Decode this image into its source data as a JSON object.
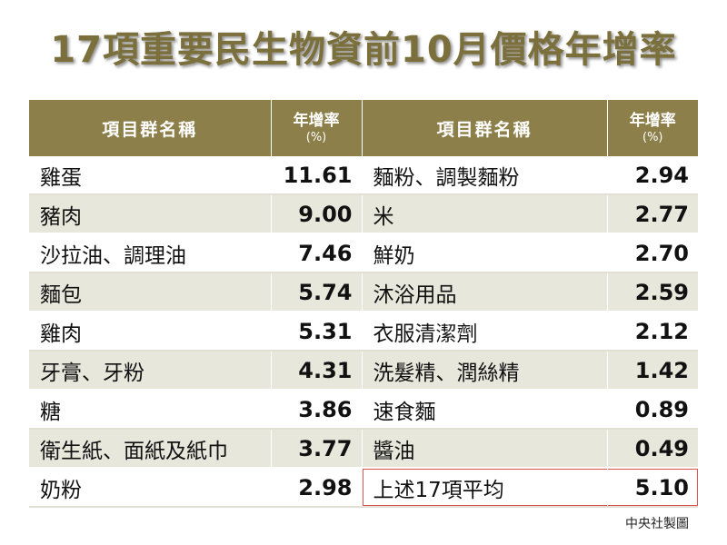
{
  "title": "17項重要民生物資前10月價格年增率",
  "table": {
    "header": {
      "name_col": "項目群名稱",
      "rate_col": "年增率",
      "rate_unit": "(%)"
    },
    "left": [
      {
        "name": "雞蛋",
        "rate": "11.61"
      },
      {
        "name": "豬肉",
        "rate": "9.00"
      },
      {
        "name": "沙拉油、調理油",
        "rate": "7.46"
      },
      {
        "name": "麵包",
        "rate": "5.74"
      },
      {
        "name": "雞肉",
        "rate": "5.31"
      },
      {
        "name": "牙膏、牙粉",
        "rate": "4.31"
      },
      {
        "name": "糖",
        "rate": "3.86"
      },
      {
        "name": "衛生紙、面紙及紙巾",
        "rate": "3.77"
      },
      {
        "name": "奶粉",
        "rate": "2.98"
      }
    ],
    "right": [
      {
        "name": "麵粉、調製麵粉",
        "rate": "2.94"
      },
      {
        "name": "米",
        "rate": "2.77"
      },
      {
        "name": "鮮奶",
        "rate": "2.70"
      },
      {
        "name": "沐浴用品",
        "rate": "2.59"
      },
      {
        "name": "衣服清潔劑",
        "rate": "2.12"
      },
      {
        "name": "洗髮精、潤絲精",
        "rate": "1.42"
      },
      {
        "name": "速食麵",
        "rate": "0.89"
      },
      {
        "name": "醬油",
        "rate": "0.49"
      },
      {
        "name": "上述17項平均",
        "rate": "5.10"
      }
    ]
  },
  "credit": "中央社製圖",
  "colors": {
    "header_bg": "#8c7f49",
    "title": "#7b6f3c",
    "stripe": "#e8e7dc",
    "highlight_border": "#d9534f"
  }
}
